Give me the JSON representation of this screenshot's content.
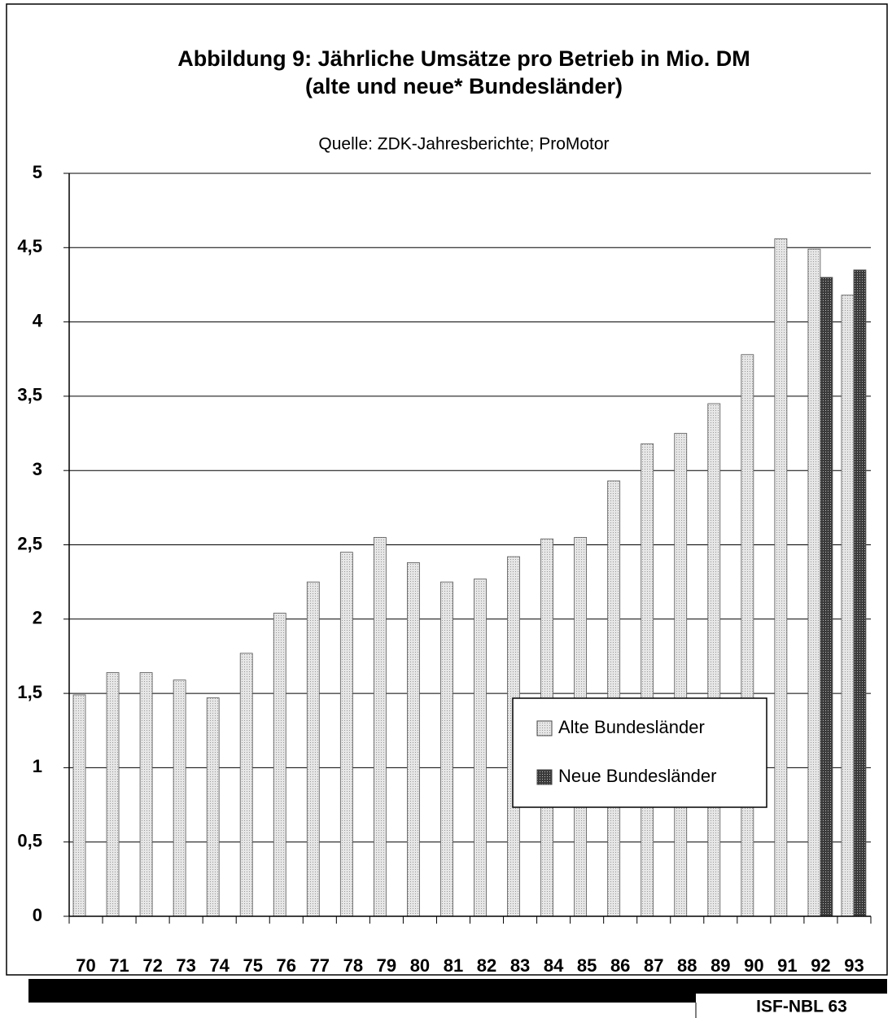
{
  "chart_data": {
    "type": "bar",
    "title": [
      "Abbildung 9: Jährliche Umsätze pro Betrieb in Mio. DM",
      "(alte und neue* Bundesländer)"
    ],
    "subtitle": "Quelle: ZDK-Jahresberichte; ProMotor",
    "categories": [
      "70",
      "71",
      "72",
      "73",
      "74",
      "75",
      "76",
      "77",
      "78",
      "79",
      "80",
      "81",
      "82",
      "83",
      "84",
      "85",
      "86",
      "87",
      "88",
      "89",
      "90",
      "91",
      "92",
      "93"
    ],
    "series": [
      {
        "name": "Alte Bundesländer",
        "color": "#dcdcdc",
        "values": [
          1.49,
          1.64,
          1.64,
          1.59,
          1.47,
          1.77,
          2.04,
          2.25,
          2.45,
          2.55,
          2.38,
          2.25,
          2.27,
          2.42,
          2.54,
          2.55,
          2.93,
          3.18,
          3.25,
          3.45,
          3.78,
          4.56,
          4.49,
          4.18
        ]
      },
      {
        "name": "Neue Bundesländer",
        "color": "#4a4a4a",
        "values": [
          null,
          null,
          null,
          null,
          null,
          null,
          null,
          null,
          null,
          null,
          null,
          null,
          null,
          null,
          null,
          null,
          null,
          null,
          null,
          null,
          null,
          null,
          4.3,
          4.35
        ]
      }
    ],
    "ylim": [
      0,
      5
    ],
    "yticks": [
      0,
      {
        "value": 0.5,
        "label": "0,5"
      },
      1,
      {
        "value": 1.5,
        "label": "1,5"
      },
      2,
      {
        "value": 2.5,
        "label": "2,5"
      },
      3,
      {
        "value": 3.5,
        "label": "3,5"
      },
      4,
      {
        "value": 4.5,
        "label": "4,5"
      },
      5
    ],
    "grid": true,
    "legend": "center-right",
    "footer": "ISF-NBL 63"
  }
}
